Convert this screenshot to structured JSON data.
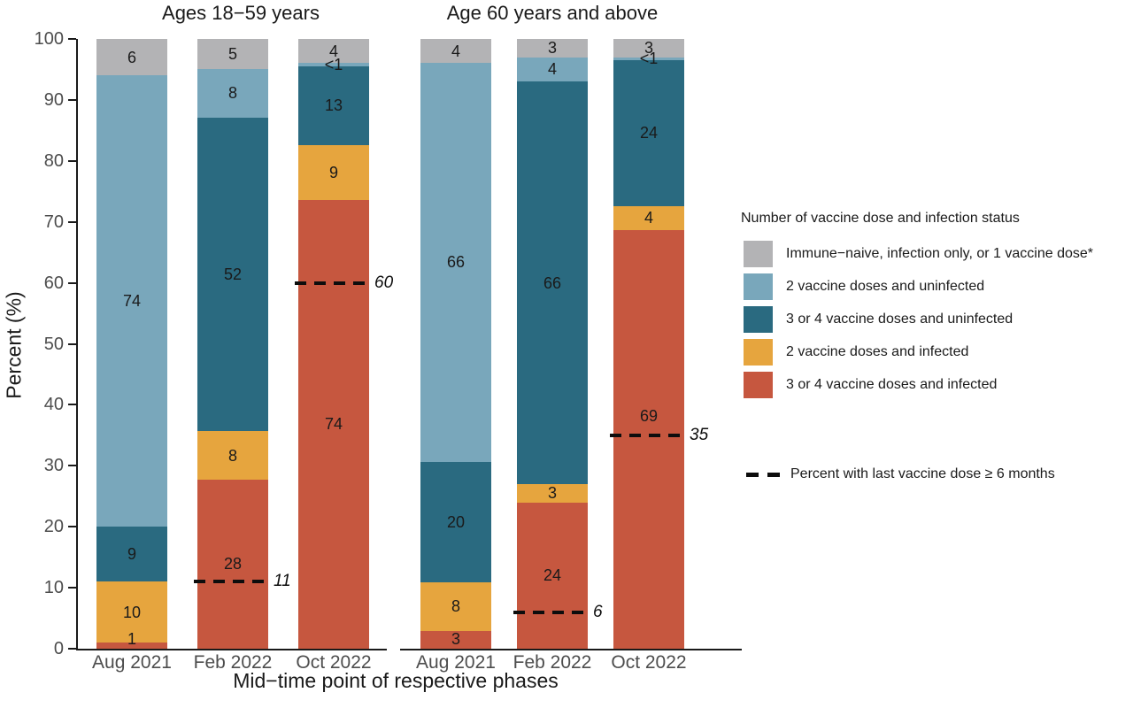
{
  "legend": {
    "title": "Number of vaccine dose and infection status",
    "items": [
      {
        "key": "naive",
        "label": "Immune−naive, infection only, or 1 vaccine dose*"
      },
      {
        "key": "two_doses_uninfected",
        "label": "2 vaccine doses and uninfected"
      },
      {
        "key": "three_four_doses_uninfected",
        "label": "3 or 4 vaccine doses and uninfected"
      },
      {
        "key": "two_doses_infected",
        "label": "2 vaccine doses and infected"
      },
      {
        "key": "three_four_doses_infected",
        "label": "3 or 4 vaccine doses and infected"
      }
    ],
    "dashed_item_label": "Percent with last vaccine dose ≥ 6 months"
  },
  "colors": {
    "naive": "#b3b3b5",
    "two_doses_uninfected": "#79a7bb",
    "three_four_doses_uninfected": "#2a6a80",
    "two_doses_infected": "#e6a53e",
    "three_four_doses_infected": "#c6573f",
    "axis_text": "#4d4d4d",
    "dashed_line": "#0d0d0d"
  },
  "chart_data": {
    "type": "bar",
    "stacked": true,
    "ylabel": "Percent (%)",
    "xlabel": "Mid−time point of respective phases",
    "ylim": [
      0,
      100
    ],
    "yticks": [
      0,
      10,
      20,
      30,
      40,
      50,
      60,
      70,
      80,
      90,
      100
    ],
    "grid": false,
    "legend_position": "right",
    "stack_order_bottom_to_top": [
      "three_four_doses_infected",
      "two_doses_infected",
      "three_four_doses_uninfected",
      "two_doses_uninfected",
      "naive"
    ],
    "dashed_line_meaning": "Percent with last vaccine dose ≥ 6 months",
    "panels": [
      {
        "title": "Ages 18−59 years",
        "categories": [
          "Aug 2021",
          "Feb 2022",
          "Oct 2022"
        ],
        "bars": [
          {
            "category": "Aug 2021",
            "values": [
              1,
              10,
              9,
              74,
              6
            ],
            "labels": [
              "1",
              "10",
              "9",
              "74",
              "6"
            ],
            "dashed_line": null
          },
          {
            "category": "Feb 2022",
            "values": [
              28,
              8,
              52,
              8,
              5
            ],
            "labels": [
              "28",
              "8",
              "52",
              "8",
              "5"
            ],
            "dashed_line": {
              "value": 11,
              "label": "11"
            }
          },
          {
            "category": "Oct 2022",
            "values": [
              74,
              9,
              13,
              0.5,
              4
            ],
            "labels": [
              "74",
              "9",
              "13",
              "<1",
              "4"
            ],
            "dashed_line": {
              "value": 60,
              "label": "60"
            }
          }
        ]
      },
      {
        "title": "Age 60 years and above",
        "categories": [
          "Aug 2021",
          "Feb 2022",
          "Oct 2022"
        ],
        "bars": [
          {
            "category": "Aug 2021",
            "values": [
              3,
              8,
              20,
              66,
              4
            ],
            "labels": [
              "3",
              "8",
              "20",
              "66",
              "4"
            ],
            "dashed_line": null
          },
          {
            "category": "Feb 2022",
            "values": [
              24,
              3,
              66,
              4,
              3
            ],
            "labels": [
              "24",
              "3",
              "66",
              "4",
              "3"
            ],
            "dashed_line": {
              "value": 6,
              "label": "6"
            }
          },
          {
            "category": "Oct 2022",
            "values": [
              69,
              4,
              24,
              0.5,
              3
            ],
            "labels": [
              "69",
              "4",
              "24",
              "<1",
              "3"
            ],
            "dashed_line": {
              "value": 35,
              "label": "35"
            }
          }
        ]
      }
    ]
  }
}
